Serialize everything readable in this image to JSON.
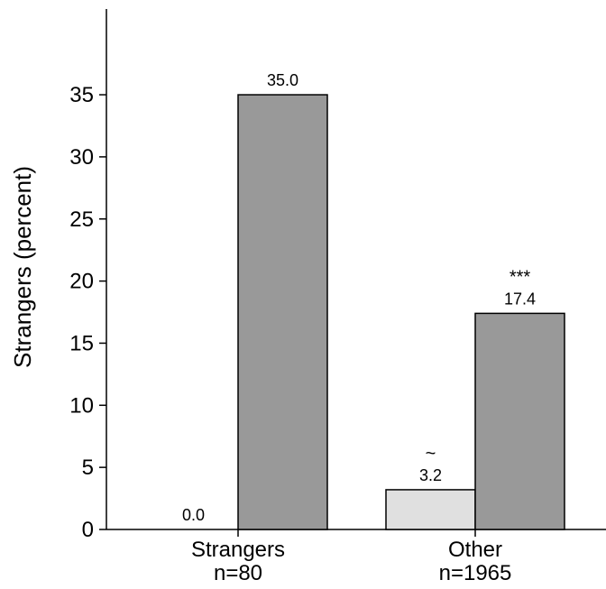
{
  "chart_data": {
    "type": "bar",
    "ylabel": "Strangers (percent)",
    "ylim": [
      0,
      40
    ],
    "yticks": [
      0,
      5,
      10,
      15,
      20,
      25,
      30,
      35
    ],
    "grid": false,
    "legend": "none",
    "categories": [
      {
        "name": "Strangers",
        "n": "n=80"
      },
      {
        "name": "Other",
        "n": "n=1965"
      }
    ],
    "series": [
      {
        "values": [
          0.0,
          3.2
        ],
        "labels": [
          "0.0",
          "3.2"
        ],
        "significance": [
          "",
          "~"
        ],
        "color": "#e0e0e0"
      },
      {
        "values": [
          35.0,
          17.4
        ],
        "labels": [
          "35.0",
          "17.4"
        ],
        "significance": [
          "",
          "***"
        ],
        "color": "#999999"
      }
    ]
  }
}
